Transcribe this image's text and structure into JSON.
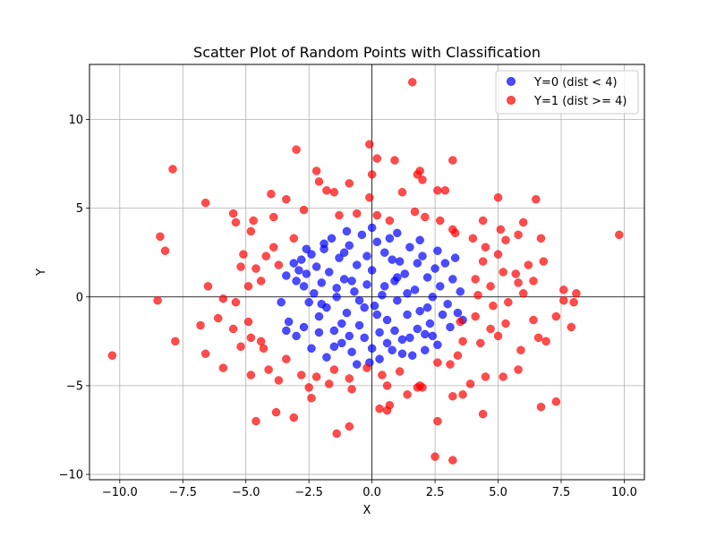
{
  "chart_data": {
    "type": "scatter",
    "title": "Scatter Plot of Random Points with Classification",
    "xlabel": "X",
    "ylabel": "Y",
    "xlim": [
      -11.2,
      10.8
    ],
    "ylim": [
      -10.3,
      13.1
    ],
    "x_ticks": [
      -10.0,
      -7.5,
      -5.0,
      -2.5,
      0.0,
      2.5,
      5.0,
      7.5,
      10.0
    ],
    "x_tick_labels": [
      "−10.0",
      "−7.5",
      "−5.0",
      "−2.5",
      "0.0",
      "2.5",
      "5.0",
      "7.5",
      "10.0"
    ],
    "y_ticks": [
      -10,
      -5,
      0,
      5,
      10
    ],
    "y_tick_labels": [
      "−10",
      "−5",
      "0",
      "5",
      "10"
    ],
    "grid": true,
    "reference_lines": {
      "x": 0,
      "y": 0
    },
    "legend_position": "top-right",
    "colors": {
      "class0": "#0000ff",
      "class1": "#ff0000",
      "grid": "#b0b0b0"
    },
    "series": [
      {
        "name": "Y=0 (dist < 4)",
        "color": "#0000ff",
        "points": [
          [
            -3.4,
            1.2
          ],
          [
            -3.1,
            1.9
          ],
          [
            -3.0,
            0.9
          ],
          [
            -2.9,
            1.5
          ],
          [
            -2.8,
            2.1
          ],
          [
            -2.7,
            0.6
          ],
          [
            -2.6,
            1.3
          ],
          [
            -2.5,
            -0.3
          ],
          [
            -2.4,
            2.4
          ],
          [
            -2.3,
            0.2
          ],
          [
            -2.2,
            1.7
          ],
          [
            -2.1,
            -1.1
          ],
          [
            -2.0,
            0.8
          ],
          [
            -1.9,
            2.7
          ],
          [
            -1.8,
            -0.6
          ],
          [
            -1.7,
            1.4
          ],
          [
            -1.6,
            3.3
          ],
          [
            -1.5,
            -1.9
          ],
          [
            -1.4,
            0.5
          ],
          [
            -1.3,
            2.2
          ],
          [
            -1.2,
            -2.6
          ],
          [
            -1.1,
            1.0
          ],
          [
            -1.0,
            -0.9
          ],
          [
            -0.9,
            2.9
          ],
          [
            -0.8,
            -3.1
          ],
          [
            -0.7,
            0.3
          ],
          [
            -0.6,
            1.8
          ],
          [
            -0.5,
            -1.6
          ],
          [
            -0.4,
            3.5
          ],
          [
            -0.3,
            -2.3
          ],
          [
            -0.2,
            0.7
          ],
          [
            -0.1,
            -3.7
          ],
          [
            0.0,
            1.5
          ],
          [
            0.1,
            -0.5
          ],
          [
            0.2,
            3.1
          ],
          [
            0.3,
            -2.0
          ],
          [
            0.4,
            0.1
          ],
          [
            0.5,
            2.5
          ],
          [
            0.6,
            -1.3
          ],
          [
            0.7,
            3.3
          ],
          [
            0.8,
            -3.0
          ],
          [
            0.9,
            0.9
          ],
          [
            1.0,
            -0.2
          ],
          [
            1.1,
            2.0
          ],
          [
            1.2,
            -2.4
          ],
          [
            1.3,
            1.3
          ],
          [
            1.4,
            -1.0
          ],
          [
            1.5,
            2.8
          ],
          [
            1.6,
            -3.3
          ],
          [
            1.7,
            0.4
          ],
          [
            1.8,
            1.9
          ],
          [
            1.9,
            -0.8
          ],
          [
            2.0,
            2.3
          ],
          [
            2.1,
            -2.1
          ],
          [
            2.2,
            1.1
          ],
          [
            2.3,
            -1.5
          ],
          [
            2.4,
            0.0
          ],
          [
            2.5,
            1.6
          ],
          [
            2.6,
            -2.7
          ],
          [
            2.7,
            0.6
          ],
          [
            2.8,
            -1.0
          ],
          [
            2.9,
            1.9
          ],
          [
            3.0,
            -0.4
          ],
          [
            3.1,
            -1.7
          ],
          [
            3.2,
            1.0
          ],
          [
            3.4,
            -0.9
          ],
          [
            3.5,
            0.3
          ],
          [
            3.6,
            -1.3
          ],
          [
            -3.6,
            -0.3
          ],
          [
            -3.3,
            -1.4
          ],
          [
            -3.0,
            -2.2
          ],
          [
            -2.7,
            -1.7
          ],
          [
            -2.4,
            -2.9
          ],
          [
            -2.1,
            -2.0
          ],
          [
            -1.8,
            -3.4
          ],
          [
            -1.5,
            -2.8
          ],
          [
            -1.2,
            -1.5
          ],
          [
            -0.9,
            -2.2
          ],
          [
            -0.6,
            -3.8
          ],
          [
            -0.3,
            -0.6
          ],
          [
            0.0,
            -2.9
          ],
          [
            0.3,
            -3.5
          ],
          [
            0.6,
            -2.6
          ],
          [
            0.9,
            -1.9
          ],
          [
            1.2,
            -3.2
          ],
          [
            1.5,
            -2.3
          ],
          [
            1.8,
            -1.8
          ],
          [
            2.1,
            -3.0
          ],
          [
            2.4,
            -2.2
          ],
          [
            -1.9,
            3.0
          ],
          [
            -1.0,
            3.7
          ],
          [
            0.0,
            3.9
          ],
          [
            1.0,
            3.6
          ],
          [
            1.9,
            3.2
          ],
          [
            2.6,
            2.6
          ],
          [
            -2.6,
            2.7
          ],
          [
            -3.4,
            -1.9
          ],
          [
            3.3,
            2.2
          ],
          [
            -1.4,
            0.0
          ],
          [
            0.5,
            0.6
          ],
          [
            1.4,
            0.2
          ],
          [
            -0.5,
            -0.2
          ],
          [
            0.2,
            -1.0
          ],
          [
            -0.8,
            0.9
          ],
          [
            1.0,
            1.1
          ],
          [
            -2.0,
            -0.4
          ],
          [
            2.2,
            -0.6
          ],
          [
            -1.1,
            2.5
          ],
          [
            0.8,
            2.1
          ],
          [
            -0.2,
            2.3
          ]
        ]
      },
      {
        "name": "Y=1 (dist >= 4)",
        "color": "#ff0000",
        "points": [
          [
            1.6,
            12.1
          ],
          [
            -0.1,
            8.6
          ],
          [
            -3.0,
            8.3
          ],
          [
            -7.9,
            7.2
          ],
          [
            0.2,
            7.8
          ],
          [
            0.9,
            7.7
          ],
          [
            3.2,
            7.7
          ],
          [
            -2.2,
            7.1
          ],
          [
            1.9,
            7.1
          ],
          [
            1.8,
            6.9
          ],
          [
            2.0,
            6.6
          ],
          [
            -0.9,
            6.4
          ],
          [
            0.0,
            6.9
          ],
          [
            -2.1,
            6.5
          ],
          [
            -6.6,
            5.3
          ],
          [
            -4.0,
            5.8
          ],
          [
            -3.4,
            5.5
          ],
          [
            -1.8,
            6.0
          ],
          [
            -1.5,
            5.9
          ],
          [
            -0.1,
            5.6
          ],
          [
            1.2,
            5.9
          ],
          [
            2.6,
            6.0
          ],
          [
            2.9,
            6.0
          ],
          [
            5.0,
            5.6
          ],
          [
            6.5,
            5.5
          ],
          [
            -5.5,
            4.7
          ],
          [
            -4.7,
            4.3
          ],
          [
            -3.9,
            4.5
          ],
          [
            -2.7,
            4.9
          ],
          [
            -1.3,
            4.6
          ],
          [
            -0.6,
            4.7
          ],
          [
            0.2,
            4.6
          ],
          [
            0.7,
            4.3
          ],
          [
            1.7,
            4.8
          ],
          [
            2.1,
            4.5
          ],
          [
            2.7,
            4.3
          ],
          [
            3.2,
            3.8
          ],
          [
            4.4,
            4.3
          ],
          [
            5.1,
            3.8
          ],
          [
            6.0,
            4.2
          ],
          [
            -8.4,
            3.4
          ],
          [
            -8.2,
            2.6
          ],
          [
            -5.4,
            4.2
          ],
          [
            -4.8,
            3.7
          ],
          [
            -3.9,
            2.8
          ],
          [
            -3.1,
            3.3
          ],
          [
            3.3,
            3.6
          ],
          [
            4.0,
            3.3
          ],
          [
            4.5,
            2.8
          ],
          [
            5.3,
            3.2
          ],
          [
            5.8,
            3.5
          ],
          [
            6.7,
            3.3
          ],
          [
            9.8,
            3.5
          ],
          [
            -5.1,
            2.4
          ],
          [
            -4.2,
            2.3
          ],
          [
            -3.7,
            1.8
          ],
          [
            4.4,
            2.0
          ],
          [
            5.0,
            2.4
          ],
          [
            5.7,
            1.3
          ],
          [
            6.2,
            1.8
          ],
          [
            6.8,
            2.0
          ],
          [
            -5.2,
            1.7
          ],
          [
            -4.6,
            1.6
          ],
          [
            -4.4,
            0.9
          ],
          [
            4.1,
            1.0
          ],
          [
            4.7,
            0.6
          ],
          [
            5.2,
            1.4
          ],
          [
            5.8,
            0.8
          ],
          [
            6.4,
            0.9
          ],
          [
            7.6,
            0.4
          ],
          [
            8.1,
            0.2
          ],
          [
            -6.5,
            0.6
          ],
          [
            -5.9,
            -0.1
          ],
          [
            -5.4,
            -0.3
          ],
          [
            -4.9,
            0.6
          ],
          [
            4.2,
            0.1
          ],
          [
            4.8,
            -0.5
          ],
          [
            5.4,
            -0.3
          ],
          [
            6.0,
            0.2
          ],
          [
            7.6,
            -0.2
          ],
          [
            8.0,
            -0.3
          ],
          [
            -8.5,
            -0.2
          ],
          [
            -6.8,
            -1.6
          ],
          [
            -6.1,
            -1.2
          ],
          [
            -5.5,
            -1.8
          ],
          [
            -4.9,
            -1.4
          ],
          [
            -4.4,
            -2.5
          ],
          [
            3.5,
            -1.4
          ],
          [
            4.1,
            -1.1
          ],
          [
            4.7,
            -1.8
          ],
          [
            5.3,
            -1.5
          ],
          [
            6.4,
            -1.3
          ],
          [
            7.3,
            -1.1
          ],
          [
            7.9,
            -1.7
          ],
          [
            -7.8,
            -2.5
          ],
          [
            -6.6,
            -3.2
          ],
          [
            -5.2,
            -2.8
          ],
          [
            -4.8,
            -2.3
          ],
          [
            -4.3,
            -2.9
          ],
          [
            3.6,
            -2.5
          ],
          [
            4.3,
            -2.6
          ],
          [
            5.0,
            -2.2
          ],
          [
            5.9,
            -3.0
          ],
          [
            6.6,
            -2.3
          ],
          [
            6.9,
            -2.5
          ],
          [
            -10.3,
            -3.3
          ],
          [
            -5.9,
            -4.0
          ],
          [
            -4.1,
            -4.1
          ],
          [
            -3.4,
            -3.5
          ],
          [
            -2.8,
            -4.4
          ],
          [
            -2.2,
            -4.5
          ],
          [
            -1.5,
            -4.1
          ],
          [
            -0.9,
            -4.6
          ],
          [
            -0.2,
            -4.0
          ],
          [
            0.4,
            -4.4
          ],
          [
            1.1,
            -4.2
          ],
          [
            1.9,
            -5.0
          ],
          [
            2.6,
            -3.7
          ],
          [
            3.1,
            -3.8
          ],
          [
            3.4,
            -3.3
          ],
          [
            4.5,
            -4.5
          ],
          [
            5.2,
            -4.5
          ],
          [
            5.8,
            -4.1
          ],
          [
            -4.8,
            -4.4
          ],
          [
            -3.7,
            -4.7
          ],
          [
            -2.5,
            -5.1
          ],
          [
            -1.7,
            -4.9
          ],
          [
            -0.8,
            -5.2
          ],
          [
            0.6,
            -5.0
          ],
          [
            1.4,
            -5.5
          ],
          [
            2.0,
            -5.1
          ],
          [
            3.2,
            -5.6
          ],
          [
            3.9,
            -4.9
          ],
          [
            -4.6,
            -7.0
          ],
          [
            -3.1,
            -6.8
          ],
          [
            -2.4,
            -5.7
          ],
          [
            -1.4,
            -7.7
          ],
          [
            0.3,
            -6.3
          ],
          [
            0.7,
            -6.1
          ],
          [
            1.8,
            -5.1
          ],
          [
            3.6,
            -5.5
          ],
          [
            4.4,
            -6.6
          ],
          [
            6.7,
            -6.2
          ],
          [
            7.3,
            -5.9
          ],
          [
            -0.9,
            -7.3
          ],
          [
            2.5,
            -9.0
          ],
          [
            3.2,
            -9.2
          ],
          [
            2.6,
            -7.0
          ],
          [
            0.6,
            -6.4
          ],
          [
            -3.8,
            -6.5
          ]
        ]
      }
    ]
  }
}
